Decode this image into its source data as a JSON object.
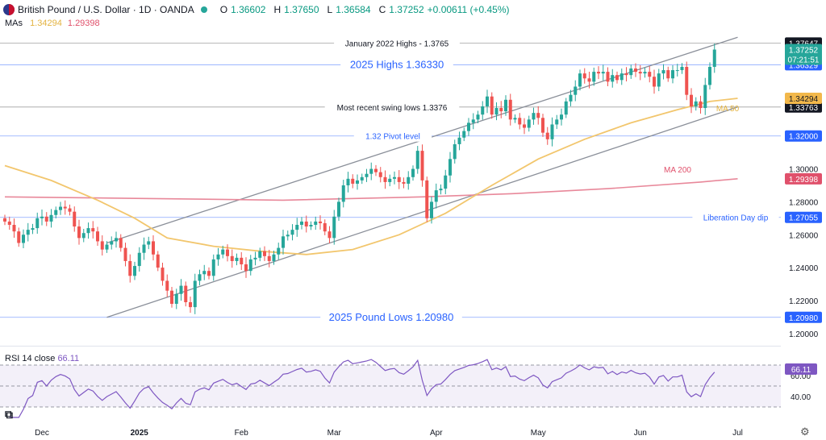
{
  "header": {
    "title": "British Pound / U.S. Dollar · 1D · OANDA",
    "o_label": "O",
    "o": "1.36602",
    "h_label": "H",
    "h": "1.37650",
    "l_label": "L",
    "l": "1.36584",
    "c_label": "C",
    "c": "1.37252",
    "change": "+0.00611 (+0.45%)"
  },
  "mas": {
    "label": "MAs",
    "ma50": "1.34294",
    "ma200": "1.29398"
  },
  "rsi": {
    "label": "RSI 14 close",
    "value": "66.11"
  },
  "colors": {
    "up": "#26a69a",
    "down": "#ef5350",
    "ma50": "#f2c66d",
    "ma200": "#e8889a",
    "rsi": "#7e57c2",
    "hline": "#2962ff",
    "channel": "#8a8f99"
  },
  "chart_data": {
    "type": "candlestick",
    "ylim": [
      1.195,
      1.385
    ],
    "y_ticks": [
      "1.20000",
      "1.22000",
      "1.24000",
      "1.26000",
      "1.28000",
      "1.30000"
    ],
    "x_ticks": [
      {
        "label": "Dec",
        "bar": 8
      },
      {
        "label": "2025",
        "bar": 29
      },
      {
        "label": "Feb",
        "bar": 51
      },
      {
        "label": "Mar",
        "bar": 71
      },
      {
        "label": "Apr",
        "bar": 93
      },
      {
        "label": "May",
        "bar": 115
      },
      {
        "label": "Jun",
        "bar": 137
      },
      {
        "label": "Jul",
        "bar": 158
      }
    ],
    "close": [
      1.268,
      1.266,
      1.262,
      1.255,
      1.26,
      1.263,
      1.264,
      1.27,
      1.271,
      1.268,
      1.272,
      1.275,
      1.277,
      1.276,
      1.274,
      1.265,
      1.258,
      1.261,
      1.264,
      1.262,
      1.256,
      1.251,
      1.254,
      1.256,
      1.258,
      1.252,
      1.244,
      1.235,
      1.241,
      1.249,
      1.254,
      1.256,
      1.248,
      1.24,
      1.232,
      1.226,
      1.218,
      1.224,
      1.229,
      1.219,
      1.216,
      1.232,
      1.236,
      1.238,
      1.235,
      1.245,
      1.248,
      1.251,
      1.247,
      1.244,
      1.246,
      1.242,
      1.238,
      1.245,
      1.246,
      1.25,
      1.247,
      1.244,
      1.248,
      1.252,
      1.259,
      1.26,
      1.263,
      1.266,
      1.268,
      1.265,
      1.266,
      1.268,
      1.267,
      1.262,
      1.258,
      1.271,
      1.28,
      1.29,
      1.294,
      1.291,
      1.293,
      1.295,
      1.297,
      1.3,
      1.298,
      1.295,
      1.292,
      1.294,
      1.295,
      1.292,
      1.291,
      1.295,
      1.3,
      1.311,
      1.293,
      1.27,
      1.28,
      1.287,
      1.288,
      1.296,
      1.306,
      1.315,
      1.319,
      1.323,
      1.328,
      1.33,
      1.333,
      1.338,
      1.344,
      1.333,
      1.337,
      1.335,
      1.342,
      1.33,
      1.331,
      1.327,
      1.325,
      1.33,
      1.334,
      1.331,
      1.322,
      1.318,
      1.327,
      1.33,
      1.333,
      1.341,
      1.345,
      1.35,
      1.358,
      1.355,
      1.353,
      1.359,
      1.358,
      1.359,
      1.353,
      1.357,
      1.354,
      1.358,
      1.357,
      1.361,
      1.359,
      1.358,
      1.359,
      1.356,
      1.35,
      1.358,
      1.36,
      1.355,
      1.36,
      1.36,
      1.362,
      1.345,
      1.338,
      1.341,
      1.337,
      1.351,
      1.362,
      1.3725
    ],
    "channel_upper": {
      "start": {
        "bar": 22,
        "price": 1.255
      },
      "end": {
        "bar": 158,
        "price": 1.38
      }
    },
    "channel_lower": {
      "start": {
        "bar": 22,
        "price": 1.2098
      },
      "end": {
        "bar": 158,
        "price": 1.3376
      }
    },
    "ma50_label": "MA 50",
    "ma200_label": "MA 200",
    "ma50": [
      [
        0,
        1.302
      ],
      [
        10,
        1.293
      ],
      [
        20,
        1.281
      ],
      [
        28,
        1.27
      ],
      [
        35,
        1.258
      ],
      [
        45,
        1.253
      ],
      [
        55,
        1.25
      ],
      [
        65,
        1.248
      ],
      [
        75,
        1.251
      ],
      [
        85,
        1.26
      ],
      [
        95,
        1.273
      ],
      [
        105,
        1.29
      ],
      [
        115,
        1.306
      ],
      [
        125,
        1.318
      ],
      [
        135,
        1.328
      ],
      [
        145,
        1.336
      ],
      [
        152,
        1.341
      ],
      [
        158,
        1.3429
      ]
    ],
    "ma200": [
      [
        0,
        1.283
      ],
      [
        30,
        1.282
      ],
      [
        60,
        1.281
      ],
      [
        90,
        1.283
      ],
      [
        110,
        1.285
      ],
      [
        130,
        1.288
      ],
      [
        150,
        1.292
      ],
      [
        158,
        1.294
      ]
    ],
    "hlines": [
      {
        "price": 1.3765,
        "label": "January 2022 Highs - 1.3765",
        "color": "#555555",
        "tag": "1.37647",
        "tag_bg": "#131722"
      },
      {
        "price": 1.3633,
        "label": "2025 Highs 1.36330",
        "color": "#2962ff",
        "tag": "1.36329",
        "tag_bg": "#2962ff"
      },
      {
        "price": 1.3376,
        "label": "Most recent swing lows 1.3376",
        "color": "#555555",
        "tag": "1.33763",
        "tag_bg": "#131722"
      },
      {
        "price": 1.32,
        "label": "1.32 Pivot level",
        "color": "#2962ff",
        "tag": "1.32000",
        "tag_bg": "#2962ff"
      },
      {
        "price": 1.27055,
        "label": "Liberation Day dip",
        "color": "#2962ff",
        "tag": "1.27055",
        "tag_bg": "#2962ff"
      },
      {
        "price": 1.2098,
        "label": "2025 Pound Lows 1.20980",
        "color": "#2962ff",
        "tag": "1.20980",
        "tag_bg": "#2962ff"
      }
    ],
    "price_tags": [
      {
        "price": 1.3725,
        "text": "1.37252",
        "sub": "07:21:51",
        "bg": "#26a69a"
      },
      {
        "price": 1.3429,
        "text": "1.34294",
        "bg": "#f2b84b",
        "fg": "#131722"
      },
      {
        "price": 1.294,
        "text": "1.29398",
        "bg": "#e0506b"
      }
    ],
    "rsi_ticks": [
      "60.00",
      "40.00"
    ],
    "rsi_ylim": [
      20,
      80
    ],
    "rsi_levels": [
      70,
      50,
      30
    ]
  }
}
